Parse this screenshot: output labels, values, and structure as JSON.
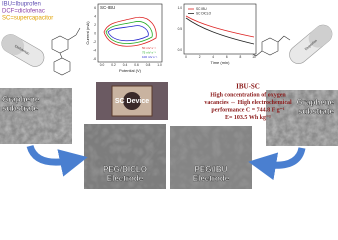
{
  "legend_notes": [
    "IBU=Ibuprofen",
    "DCF=diclofenac",
    "SC=supercapacitor"
  ],
  "capsules": [
    "Diclofenac",
    "Ibuprofen"
  ],
  "cv_plot": {
    "title": "SC-IBU",
    "y_label": "Current (mA)",
    "x_label": "Potential (V)",
    "x_ticks": [
      "0.0",
      "0.2",
      "0.4",
      "0.6",
      "0.8",
      "1.0"
    ],
    "y_ticks": [
      "6",
      "4",
      "2",
      "0",
      "-2",
      "-4",
      "-6"
    ],
    "legend": [
      "50 mV s⁻¹",
      "75 mV s⁻¹",
      "100 mV s⁻¹"
    ]
  },
  "gcd_plot": {
    "legend": [
      "SC IBU",
      "SC DICLO"
    ],
    "x_label": "Time (min)",
    "x_ticks": [
      "0",
      "2",
      "4",
      "6",
      "8",
      "10"
    ],
    "y_ticks": [
      "1.0",
      "0.5",
      "0.0"
    ]
  },
  "device_label": "SC Device",
  "highlight": {
    "title": "IBU-SC",
    "lines": [
      "High concentration of oxygen",
      "vacancies ⇔ High electrochemical",
      "performance C = 744.8 F g⁻¹",
      "E= 103.5 Wh kg⁻¹"
    ]
  },
  "panels": [
    {
      "lines": [
        "Graphene",
        "substrate"
      ]
    },
    {
      "lines": [
        "PEG/DICLO",
        "Electrode"
      ]
    },
    {
      "lines": [
        "PEG/IBU",
        "Electrode"
      ]
    },
    {
      "lines": [
        "Graphene",
        "substrate"
      ]
    }
  ]
}
